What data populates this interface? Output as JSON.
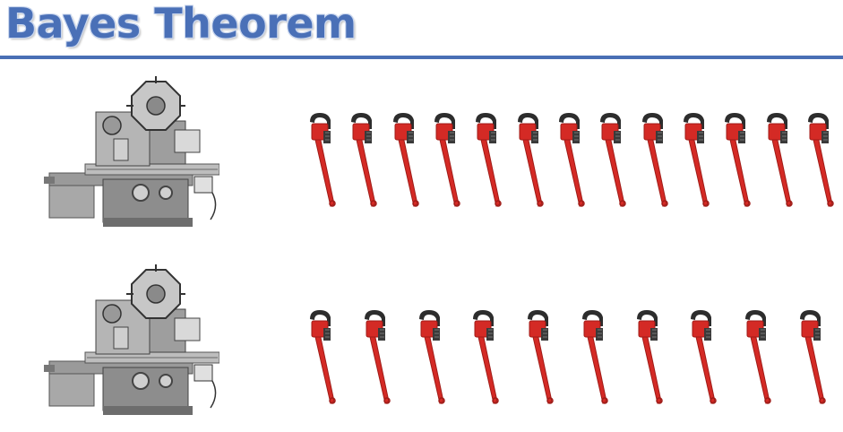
{
  "title": "Bayes Theorem",
  "colors": {
    "title": "#4a70b7",
    "title_outline": "#c9d6ee",
    "rule": "#4a6fb5",
    "wrench": "#d42a25",
    "wrench_dark": "#a01b17",
    "machine": "#8c8c8c"
  },
  "rows": [
    {
      "machine_icon": "milling-machine-icon",
      "wrench_icon": "pipe-wrench-icon",
      "wrench_count": 13
    },
    {
      "machine_icon": "milling-machine-icon",
      "wrench_icon": "pipe-wrench-icon",
      "wrench_count": 10
    }
  ]
}
